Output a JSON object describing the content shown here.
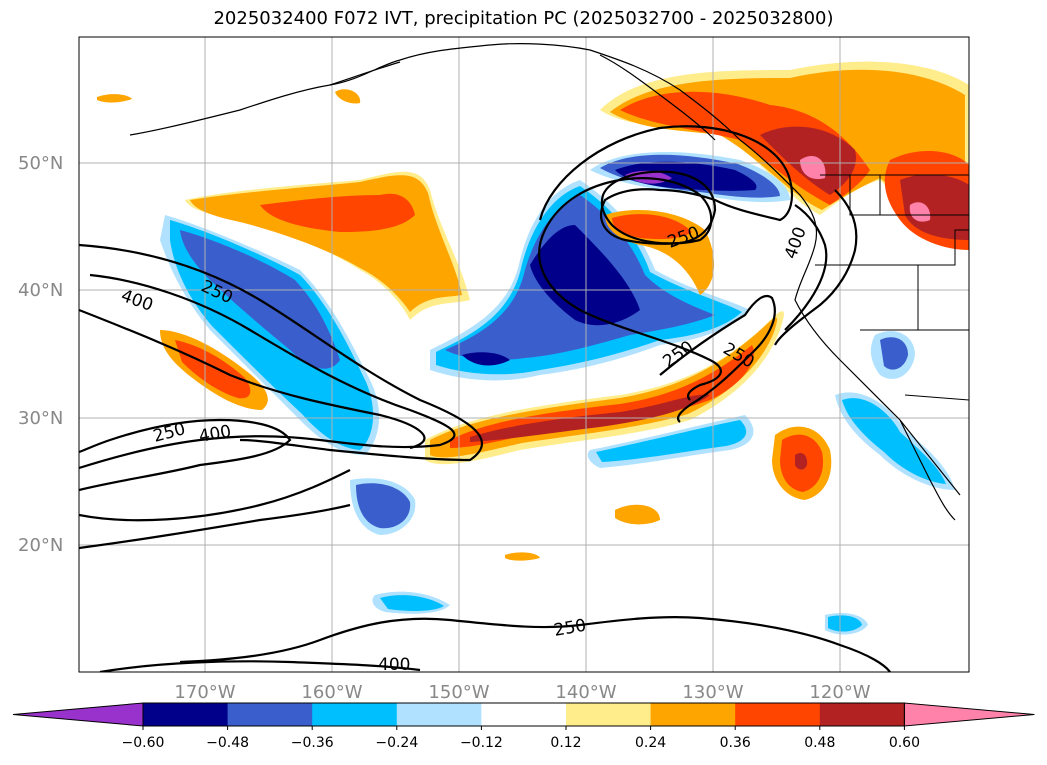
{
  "title": "2025032400 F072 IVT, precipitation PC (2025032700 - 2025032800)",
  "lat_labels": [
    "50°N",
    "40°N",
    "30°N",
    "20°N"
  ],
  "lon_labels": [
    "170°W",
    "160°W",
    "150°W",
    "140°W",
    "130°W",
    "120°W"
  ],
  "contour_labels": [
    "400",
    "250",
    "250",
    "400",
    "250",
    "250",
    "250",
    "400",
    "250",
    "400"
  ],
  "colorbar": {
    "ticks": [
      "−0.60",
      "−0.48",
      "−0.36",
      "−0.24",
      "−0.12",
      "0.12",
      "0.24",
      "0.36",
      "0.48",
      "0.60"
    ],
    "colors": [
      "#9932cc",
      "#00008b",
      "#3a5fcd",
      "#00bfff",
      "#b0e2ff",
      "#ffffff",
      "#ffec8b",
      "#ffa500",
      "#ff4500",
      "#b22222",
      "#ff82ab"
    ]
  }
}
